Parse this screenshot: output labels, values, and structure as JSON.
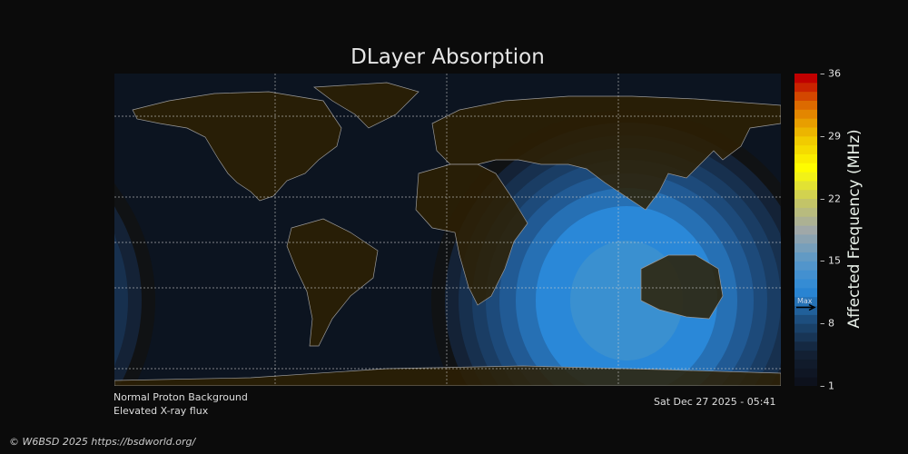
{
  "title": "DLayer Absorption",
  "colorbar": {
    "label": "Affected Frequency (MHz)",
    "ticks": [
      "36",
      "29",
      "22",
      "15",
      "8",
      "1"
    ],
    "range": [
      1,
      36
    ],
    "max_marker_label": "Max",
    "max_marker_value": 9.8,
    "color_stops": [
      "#0d111c",
      "#142236",
      "#1c4a78",
      "#2a88d8",
      "#5a98c8",
      "#a0a8a8",
      "#c8c860",
      "#ffff00",
      "#f0c800",
      "#e07800",
      "#c00000"
    ]
  },
  "notes": {
    "line1": "Normal Proton Background",
    "line2": "Elevated X-ray flux",
    "timestamp": "Sat Dec 27 2025 - 05:41"
  },
  "footer": "© W6BSD 2025 https://bsdworld.org/",
  "colors": {
    "ocean": "#0c1420",
    "land": "#2e2002",
    "coast": "#9a9a9a",
    "background": "#0b0b0b"
  }
}
